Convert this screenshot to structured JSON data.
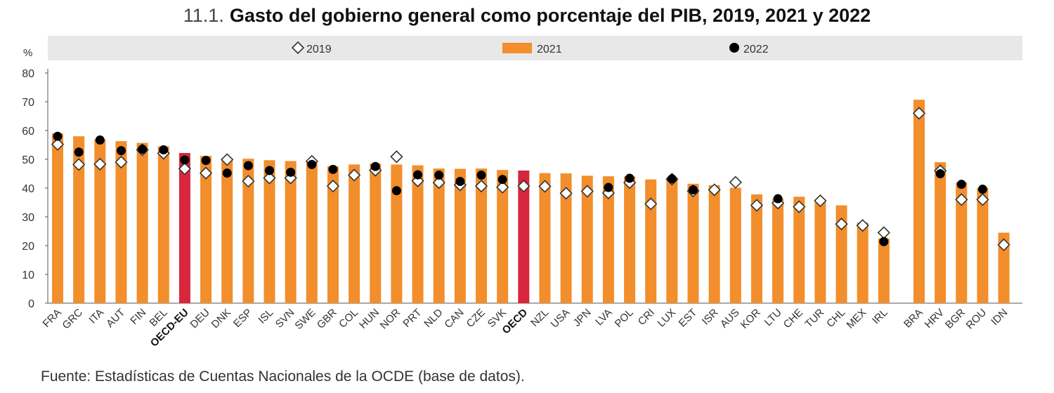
{
  "chart_data": {
    "type": "bar",
    "title_number": "11.1.",
    "title": "Gasto del gobierno general como porcentaje del PIB, 2019, 2021 y 2022",
    "ylabel": "%",
    "ylim": [
      0,
      80
    ],
    "yticks": [
      0,
      10,
      20,
      30,
      40,
      50,
      60,
      70,
      80
    ],
    "grid": false,
    "legend_position": "top",
    "source": "Fuente: Estadísticas de Cuentas Nacionales de la OCDE (base de datos).",
    "colors": {
      "bar": "#f28e2b",
      "bar_highlight": "#d7263d",
      "marker_2022": "#000000",
      "marker_2019_fill": "#ffffff",
      "marker_2019_stroke": "#333333",
      "legend_band": "#e8e8e8"
    },
    "legend": [
      {
        "name": "2019",
        "shape": "diamond"
      },
      {
        "name": "2021",
        "shape": "bar"
      },
      {
        "name": "2022",
        "shape": "circle"
      }
    ],
    "categories": [
      "FRA",
      "GRC",
      "ITA",
      "AUT",
      "FIN",
      "BEL",
      "OECD-EU",
      "DEU",
      "DNK",
      "ESP",
      "ISL",
      "SVN",
      "SWE",
      "GBR",
      "COL",
      "HUN",
      "NOR",
      "PRT",
      "NLD",
      "CAN",
      "CZE",
      "SVK",
      "OECD",
      "NZL",
      "USA",
      "JPN",
      "LVA",
      "POL",
      "CRI",
      "LUX",
      "EST",
      "ISR",
      "AUS",
      "KOR",
      "LTU",
      "CHE",
      "TUR",
      "CHL",
      "MEX",
      "IRL",
      "BRA",
      "HRV",
      "BGR",
      "ROU",
      "IDN"
    ],
    "highlight_categories": [
      "OECD-EU",
      "OECD"
    ],
    "group_break_before": "BRA",
    "series": [
      {
        "name": "2019",
        "values": [
          55.2,
          48.2,
          48.3,
          49.0,
          53.3,
          52.1,
          46.7,
          45.2,
          49.9,
          42.4,
          43.5,
          43.5,
          49.3,
          40.7,
          44.5,
          46.2,
          50.9,
          42.5,
          41.9,
          41.1,
          40.7,
          40.3,
          40.7,
          40.6,
          38.2,
          38.9,
          38.3,
          41.9,
          34.5,
          43.1,
          39.0,
          39.4,
          42.0,
          34.0,
          34.8,
          33.5,
          35.6,
          27.5,
          27.0,
          24.5,
          66.0,
          46.0,
          36.0,
          36.0,
          20.3
        ]
      },
      {
        "name": "2021",
        "values": [
          59.0,
          58.0,
          57.0,
          56.3,
          55.7,
          54.5,
          52.2,
          51.2,
          50.0,
          50.2,
          49.7,
          49.4,
          49.0,
          47.6,
          48.2,
          48.5,
          48.2,
          47.9,
          46.8,
          46.7,
          46.8,
          46.3,
          46.1,
          45.2,
          45.1,
          44.3,
          44.1,
          44.1,
          43.0,
          43.5,
          41.5,
          41.0,
          40.1,
          37.8,
          36.3,
          37.0,
          35.8,
          34.0,
          28.0,
          22.5,
          70.7,
          49.0,
          42.0,
          40.0,
          24.5
        ]
      },
      {
        "name": "2022",
        "values": [
          58.0,
          52.5,
          56.7,
          53.0,
          53.5,
          53.3,
          49.8,
          49.6,
          45.2,
          47.8,
          46.1,
          45.5,
          48.2,
          46.5,
          null,
          47.5,
          39.1,
          44.6,
          44.5,
          42.3,
          44.5,
          43.0,
          null,
          null,
          null,
          null,
          40.2,
          43.4,
          null,
          43.2,
          39.4,
          null,
          null,
          null,
          36.3,
          null,
          null,
          null,
          null,
          21.4,
          null,
          45.0,
          41.3,
          39.6,
          null
        ]
      }
    ]
  }
}
